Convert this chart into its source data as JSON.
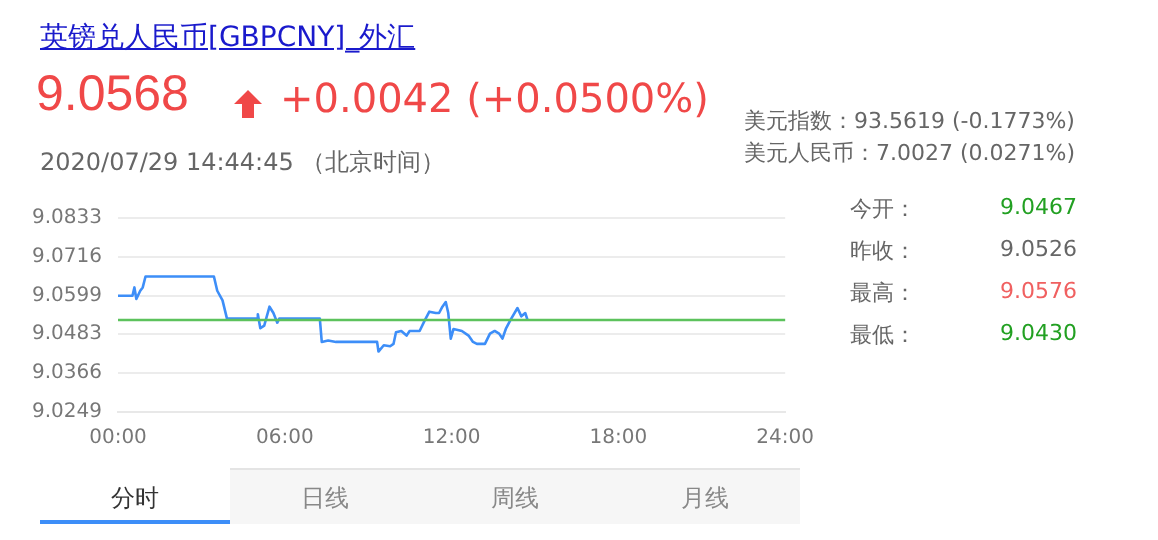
{
  "chart_data": {
    "type": "line",
    "title": "英镑兑人民币[GBPCNY]_外汇",
    "subtitle": "9.0568",
    "annotations": [
      "+0.0042 (+0.0500%)",
      "2020/07/29 14:44:45 （北京时间）",
      "美元指数：93.5619 (-0.1773%)",
      "美元人民币：7.0027 (0.0271%)",
      "今开：",
      "9.0467",
      "昨收：",
      "9.0526",
      "最高：",
      "9.0576",
      "最低：",
      "9.0430",
      "分时",
      "日线",
      "周线",
      "月线"
    ],
    "series": [
      {
        "color": "#3d8ef8",
        "x": [
          0,
          0.52,
          0.59,
          0.66,
          0.8,
          0.89,
          0.99,
          3.45,
          3.57,
          3.76,
          3.92,
          4.98,
          5.03,
          5.12,
          5.26,
          5.45,
          5.59,
          5.73,
          5.8,
          7.26,
          7.33,
          7.56,
          7.84,
          9.32,
          9.37,
          9.56,
          9.79,
          9.91,
          10,
          10.19,
          10.38,
          10.49,
          10.85,
          11.03,
          11.2,
          11.43,
          11.55,
          11.67,
          11.79,
          11.88,
          11.97,
          12.07,
          12.37,
          12.61,
          12.77,
          12.91,
          13.2,
          13.38,
          13.55,
          13.71,
          13.83,
          13.95,
          14.13,
          14.37,
          14.51,
          14.65,
          14.74
        ],
        "values": [
          9.0599,
          9.0599,
          9.0624,
          9.0589,
          9.0614,
          9.0624,
          9.0657,
          9.0657,
          9.0614,
          9.0585,
          9.053,
          9.053,
          9.0543,
          9.0501,
          9.0509,
          9.0566,
          9.0547,
          9.0518,
          9.053,
          9.053,
          9.046,
          9.0464,
          9.046,
          9.046,
          9.0431,
          9.045,
          9.0447,
          9.0454,
          9.0489,
          9.0493,
          9.0479,
          9.0493,
          9.0493,
          9.0524,
          9.0551,
          9.0547,
          9.0547,
          9.0566,
          9.058,
          9.0547,
          9.047,
          9.0499,
          9.0493,
          9.0479,
          9.046,
          9.0454,
          9.0454,
          9.0485,
          9.0493,
          9.0485,
          9.047,
          9.0499,
          9.0528,
          9.0562,
          9.0537,
          9.0547,
          9.0524
        ]
      }
    ],
    "xlim": [
      0,
      24
    ],
    "xticks": [
      {
        "value": 0,
        "label": "00:00"
      },
      {
        "value": 6,
        "label": "06:00"
      },
      {
        "value": 12,
        "label": "12:00"
      },
      {
        "value": 18,
        "label": "18:00"
      },
      {
        "value": 24,
        "label": "24:00"
      }
    ],
    "ylim": [
      9.0249,
      9.0833
    ],
    "yticks": [
      9.0249,
      9.0366,
      9.0483,
      9.0599,
      9.0716,
      9.0833
    ],
    "ref_lines": [
      {
        "axis": "y",
        "value": 9.0526,
        "color": "#5cc25c"
      }
    ],
    "grid": "y",
    "legend": false,
    "marker": "none",
    "line_style": "solid"
  }
}
